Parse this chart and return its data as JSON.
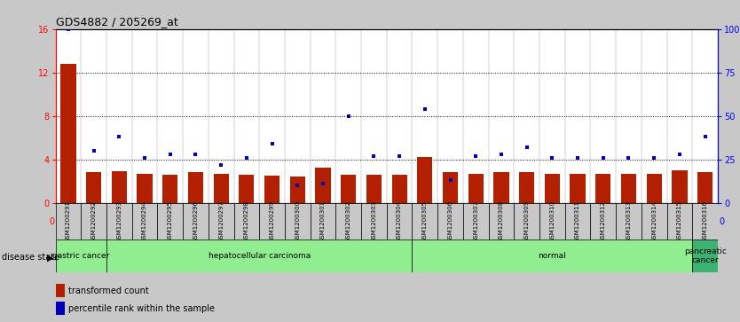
{
  "title": "GDS4882 / 205269_at",
  "samples": [
    "GSM1200291",
    "GSM1200292",
    "GSM1200293",
    "GSM1200294",
    "GSM1200295",
    "GSM1200296",
    "GSM1200297",
    "GSM1200298",
    "GSM1200299",
    "GSM1200300",
    "GSM1200301",
    "GSM1200302",
    "GSM1200303",
    "GSM1200304",
    "GSM1200305",
    "GSM1200306",
    "GSM1200307",
    "GSM1200308",
    "GSM1200309",
    "GSM1200310",
    "GSM1200311",
    "GSM1200312",
    "GSM1200313",
    "GSM1200314",
    "GSM1200315",
    "GSM1200316"
  ],
  "transformed_count": [
    12.8,
    2.8,
    2.9,
    2.7,
    2.6,
    2.8,
    2.7,
    2.6,
    2.5,
    2.4,
    3.2,
    2.6,
    2.6,
    2.6,
    4.2,
    2.8,
    2.7,
    2.8,
    2.8,
    2.7,
    2.7,
    2.7,
    2.7,
    2.7,
    3.0,
    2.8
  ],
  "percentile_rank": [
    100,
    30,
    38,
    26,
    28,
    28,
    22,
    26,
    34,
    10,
    11,
    50,
    27,
    27,
    54,
    13,
    27,
    28,
    32,
    26,
    26,
    26,
    26,
    26,
    28,
    38
  ],
  "disease_groups": [
    {
      "label": "gastric cancer",
      "start": 0,
      "end": 2,
      "color": "#90EE90"
    },
    {
      "label": "hepatocellular carcinoma",
      "start": 2,
      "end": 14,
      "color": "#90EE90"
    },
    {
      "label": "normal",
      "start": 14,
      "end": 25,
      "color": "#90EE90"
    },
    {
      "label": "pancreatic\ncancer",
      "start": 25,
      "end": 26,
      "color": "#3CB371"
    }
  ],
  "bar_color": "#b32000",
  "dot_color": "#0000bb",
  "ylim_left": [
    0,
    16
  ],
  "ylim_right": [
    0,
    100
  ],
  "yticks_left": [
    0,
    4,
    8,
    12,
    16
  ],
  "yticks_right": [
    0,
    25,
    50,
    75,
    100
  ],
  "yticklabels_right": [
    "0",
    "25",
    "50",
    "75",
    "100%"
  ],
  "bg_color": "#c8c8c8",
  "plot_bg": "#ffffff",
  "xtick_bg": "#c8c8c8",
  "dot_size": 8
}
